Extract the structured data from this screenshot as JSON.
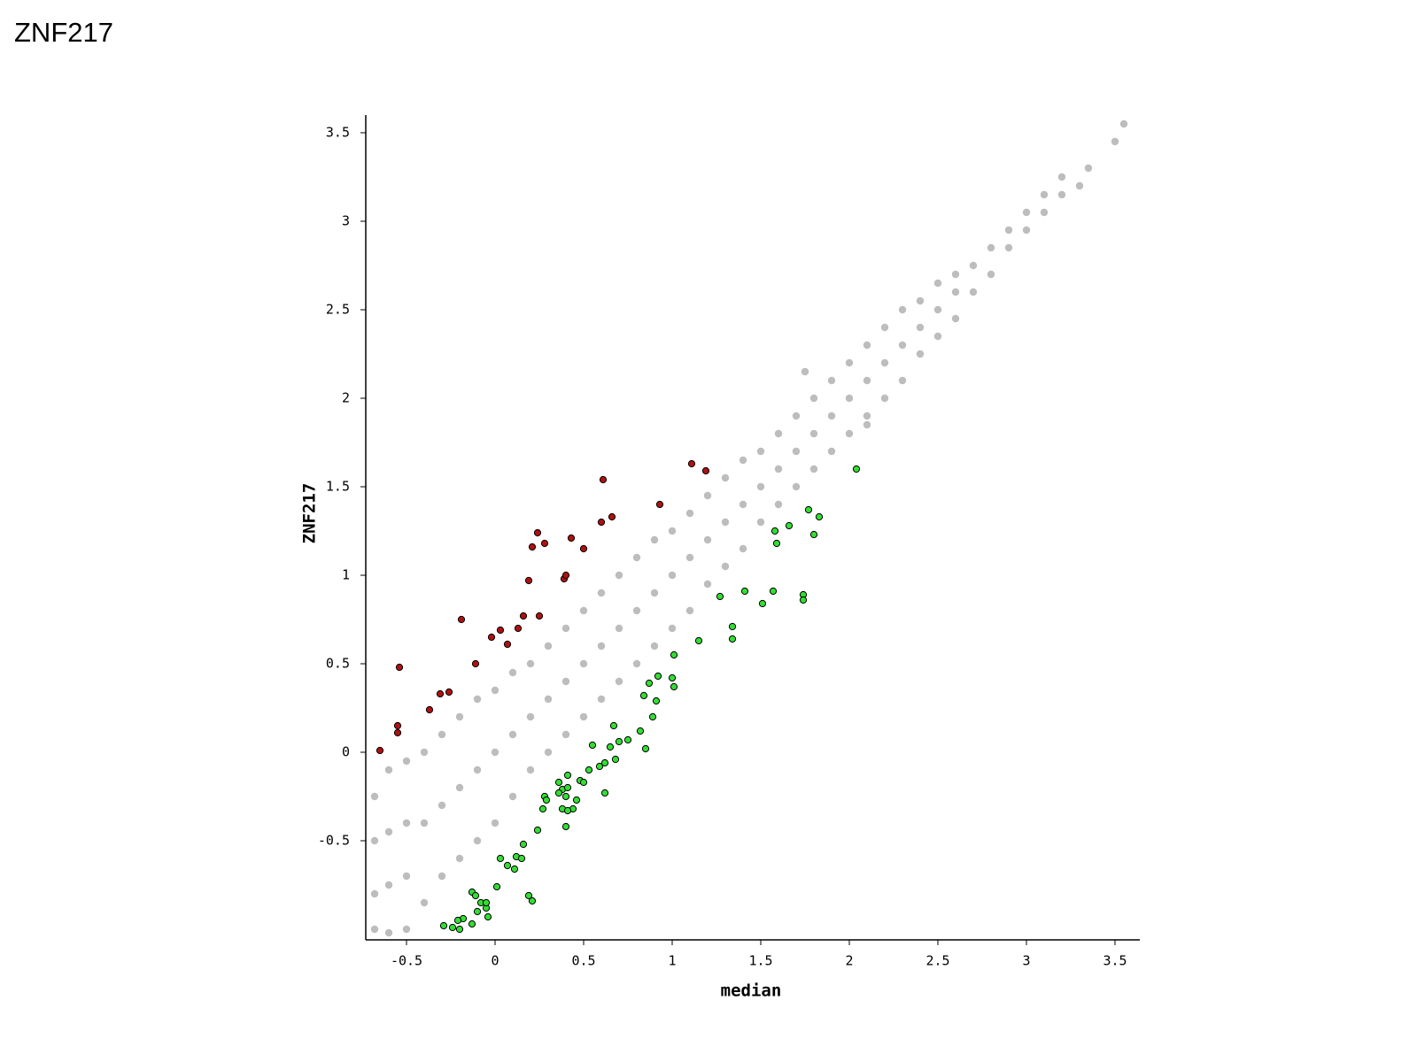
{
  "chart_data": {
    "type": "scatter",
    "title": "ZNF217",
    "x_label": "median",
    "y_label": "ZNF217",
    "xlim": [
      -0.73,
      3.64
    ],
    "ylim": [
      -1.06,
      3.6
    ],
    "xticks": [
      -0.5,
      0,
      0.5,
      1,
      1.5,
      2,
      2.5,
      3,
      3.5
    ],
    "yticks": [
      -0.5,
      0,
      0.5,
      1,
      1.5,
      2,
      2.5,
      3,
      3.5
    ],
    "series": [
      {
        "color": "#bdbdbd",
        "x": [
          -0.68,
          -0.68,
          -0.68,
          -0.68,
          -0.6,
          -0.6,
          -0.6,
          -0.6,
          -0.5,
          -0.5,
          -0.5,
          -0.5,
          -0.4,
          -0.4,
          -0.4,
          -0.3,
          -0.3,
          -0.3,
          -0.2,
          -0.2,
          -0.2,
          -0.1,
          -0.1,
          -0.1,
          0,
          0,
          0,
          0.1,
          0.1,
          0.1,
          0.2,
          0.2,
          0.2,
          0.3,
          0.3,
          0.3,
          0.4,
          0.4,
          0.4,
          0.5,
          0.5,
          0.5,
          0.6,
          0.6,
          0.6,
          0.7,
          0.7,
          0.7,
          0.8,
          0.8,
          0.8,
          0.9,
          0.9,
          0.9,
          1.0,
          1.0,
          1.0,
          1.1,
          1.1,
          1.1,
          1.2,
          1.2,
          1.2,
          1.3,
          1.3,
          1.3,
          1.4,
          1.4,
          1.4,
          1.5,
          1.5,
          1.5,
          1.6,
          1.6,
          1.6,
          1.7,
          1.7,
          1.7,
          1.8,
          1.8,
          1.8,
          1.9,
          1.9,
          1.9,
          2.0,
          2.0,
          2.0,
          2.1,
          2.1,
          2.1,
          2.2,
          2.2,
          2.2,
          2.3,
          2.3,
          2.3,
          2.4,
          2.4,
          2.4,
          2.5,
          2.5,
          2.5,
          2.6,
          2.6,
          2.6,
          2.7,
          2.7,
          2.8,
          2.8,
          2.9,
          2.9,
          3.0,
          3.0,
          3.1,
          3.1,
          3.2,
          3.2,
          3.3,
          3.35,
          3.5,
          3.55,
          1.75,
          2.1
        ],
        "values": [
          -1.0,
          -0.8,
          -0.5,
          -0.25,
          -1.02,
          -0.75,
          -0.45,
          -0.1,
          -1.0,
          -0.7,
          -0.4,
          -0.05,
          -0.85,
          -0.4,
          0.0,
          -0.7,
          -0.3,
          0.1,
          -0.6,
          -0.2,
          0.2,
          -0.5,
          -0.1,
          0.3,
          -0.4,
          0.0,
          0.35,
          -0.25,
          0.1,
          0.45,
          -0.1,
          0.2,
          0.5,
          0.0,
          0.3,
          0.6,
          0.1,
          0.4,
          0.7,
          0.2,
          0.5,
          0.8,
          0.3,
          0.6,
          0.9,
          0.4,
          0.7,
          1.0,
          0.5,
          0.8,
          1.1,
          0.6,
          0.9,
          1.2,
          0.7,
          1.0,
          1.25,
          0.8,
          1.1,
          1.35,
          0.95,
          1.2,
          1.45,
          1.05,
          1.3,
          1.55,
          1.15,
          1.4,
          1.65,
          1.3,
          1.5,
          1.7,
          1.4,
          1.6,
          1.8,
          1.5,
          1.7,
          1.9,
          1.6,
          1.8,
          2.0,
          1.7,
          1.9,
          2.1,
          1.8,
          2.0,
          2.2,
          1.9,
          2.1,
          2.3,
          2.0,
          2.2,
          2.4,
          2.1,
          2.3,
          2.5,
          2.25,
          2.4,
          2.55,
          2.35,
          2.5,
          2.65,
          2.45,
          2.6,
          2.7,
          2.6,
          2.75,
          2.7,
          2.85,
          2.85,
          2.95,
          2.95,
          3.05,
          3.05,
          3.15,
          3.15,
          3.25,
          3.2,
          3.3,
          3.45,
          3.55,
          2.15,
          1.85
        ]
      },
      {
        "color": "#b01010",
        "x": [
          -0.65,
          -0.55,
          -0.55,
          -0.54,
          -0.37,
          -0.31,
          -0.26,
          -0.19,
          -0.11,
          -0.02,
          0.03,
          0.07,
          0.13,
          0.16,
          0.25,
          0.19,
          0.21,
          0.24,
          0.28,
          0.39,
          0.4,
          0.43,
          0.5,
          0.6,
          0.66,
          0.61,
          0.93,
          1.11,
          1.19
        ],
        "values": [
          0.01,
          0.15,
          0.11,
          0.48,
          0.24,
          0.33,
          0.34,
          0.75,
          0.5,
          0.65,
          0.69,
          0.61,
          0.7,
          0.77,
          0.77,
          0.97,
          1.16,
          1.24,
          1.18,
          0.98,
          1.0,
          1.21,
          1.15,
          1.3,
          1.33,
          1.54,
          1.4,
          1.63,
          1.59
        ]
      },
      {
        "color": "#33dd33",
        "x": [
          2.04,
          1.77,
          1.83,
          1.8,
          1.66,
          1.58,
          1.59,
          1.74,
          1.74,
          1.57,
          1.51,
          1.41,
          1.27,
          1.34,
          1.34,
          1.15,
          1.01,
          1.0,
          1.01,
          0.92,
          0.87,
          0.84,
          0.91,
          0.89,
          0.82,
          0.85,
          0.75,
          0.7,
          0.67,
          0.65,
          0.68,
          0.62,
          0.59,
          0.55,
          0.53,
          0.48,
          0.5,
          0.62,
          0.41,
          0.36,
          0.38,
          0.41,
          0.36,
          0.4,
          0.46,
          0.44,
          0.38,
          0.41,
          0.4,
          0.28,
          0.29,
          0.27,
          0.24,
          0.16,
          0.12,
          0.15,
          0.03,
          0.07,
          0.11,
          0.01,
          0.19,
          0.21,
          -0.13,
          -0.11,
          -0.08,
          -0.05,
          -0.05,
          -0.1,
          -0.04,
          -0.18,
          -0.21,
          -0.13,
          -0.29,
          -0.24,
          -0.2
        ],
        "values": [
          1.6,
          1.37,
          1.33,
          1.23,
          1.28,
          1.25,
          1.18,
          0.89,
          0.86,
          0.91,
          0.84,
          0.91,
          0.88,
          0.71,
          0.64,
          0.63,
          0.55,
          0.42,
          0.37,
          0.43,
          0.39,
          0.32,
          0.29,
          0.2,
          0.12,
          0.02,
          0.07,
          0.06,
          0.15,
          0.03,
          -0.04,
          -0.06,
          -0.08,
          0.04,
          -0.1,
          -0.16,
          -0.17,
          -0.23,
          -0.13,
          -0.17,
          -0.21,
          -0.2,
          -0.23,
          -0.25,
          -0.27,
          -0.32,
          -0.32,
          -0.33,
          -0.42,
          -0.25,
          -0.27,
          -0.32,
          -0.44,
          -0.52,
          -0.59,
          -0.6,
          -0.6,
          -0.64,
          -0.66,
          -0.76,
          -0.81,
          -0.84,
          -0.79,
          -0.81,
          -0.85,
          -0.88,
          -0.85,
          -0.9,
          -0.93,
          -0.94,
          -0.95,
          -0.97,
          -0.98,
          -0.99,
          -1.0
        ]
      }
    ]
  }
}
